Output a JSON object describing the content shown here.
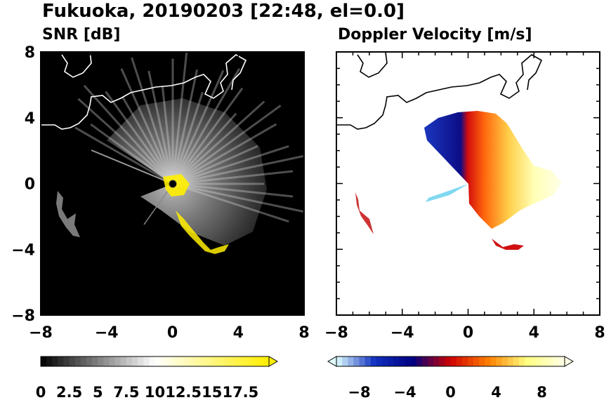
{
  "figure": {
    "title": "Fukuoka, 20190203 [22:48, el=0.0]"
  },
  "chart_data": [
    {
      "type": "heatmap",
      "title": "SNR [dB]",
      "xlim": [
        -8,
        8
      ],
      "ylim": [
        -8,
        8
      ],
      "xticks": [
        "−8",
        "−4",
        "0",
        "4",
        "8"
      ],
      "yticks": [
        "8",
        "4",
        "0",
        "−4",
        "−8"
      ],
      "background": "#000000",
      "coastline_color": "#ffffff",
      "colorbar": {
        "range": [
          0,
          20
        ],
        "extend": "max",
        "tick_values": [
          0,
          2.5,
          5,
          7.5,
          10,
          12.5,
          15,
          17.5
        ],
        "tick_labels": [
          "0",
          "2.5",
          "5",
          "7.5",
          "10",
          "12.5",
          "15",
          "17.5"
        ],
        "colors": [
          "#000000",
          "#ffffff",
          "#ffee00"
        ]
      }
    },
    {
      "type": "heatmap",
      "title": "Doppler Velocity [m/s]",
      "xlim": [
        -8,
        8
      ],
      "ylim": [
        -8,
        8
      ],
      "xticks": [
        "−8",
        "−4",
        "0",
        "4",
        "8"
      ],
      "yticks": [
        "8",
        "4",
        "0",
        "−4",
        "−8"
      ],
      "background": "#ffffff",
      "coastline_color": "#000000",
      "colorbar": {
        "range": [
          -10,
          10
        ],
        "extend": "both",
        "tick_values": [
          -8,
          -4,
          0,
          4,
          8
        ],
        "tick_labels": [
          "−8",
          "−4",
          "0",
          "4",
          "8"
        ],
        "colors": [
          "#e0ffff",
          "#1030c0",
          "#000080",
          "#d00000",
          "#ff8000",
          "#ffff80",
          "#ffffe8"
        ]
      }
    }
  ]
}
